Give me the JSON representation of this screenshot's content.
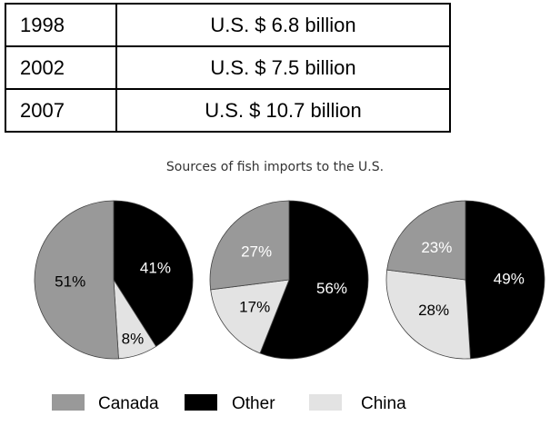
{
  "table": {
    "rows": [
      {
        "year": "1998",
        "value": "U.S.  $ 6.8 billion"
      },
      {
        "year": "2002",
        "value": "U.S.  $ 7.5 billion"
      },
      {
        "year": "2007",
        "value": "U.S.  $ 10.7 billion"
      }
    ]
  },
  "chart_data": {
    "type": "pie",
    "title": "Sources of fish imports to the U.S.",
    "legend": {
      "placement": "bottom",
      "entries": [
        {
          "name": "Canada",
          "color": "#999999"
        },
        {
          "name": "Other",
          "color": "#000000"
        },
        {
          "name": "China",
          "color": "#e3e3e3"
        }
      ]
    },
    "pies": [
      {
        "slices": [
          {
            "name": "Other",
            "value": 41,
            "label": "41%"
          },
          {
            "name": "China",
            "value": 8,
            "label": "8%"
          },
          {
            "name": "Canada",
            "value": 51,
            "label": "51%"
          }
        ]
      },
      {
        "slices": [
          {
            "name": "Other",
            "value": 56,
            "label": "56%"
          },
          {
            "name": "China",
            "value": 17,
            "label": "17%"
          },
          {
            "name": "Canada",
            "value": 27,
            "label": "27%"
          }
        ]
      },
      {
        "slices": [
          {
            "name": "Other",
            "value": 49,
            "label": "49%"
          },
          {
            "name": "China",
            "value": 28,
            "label": "28%"
          },
          {
            "name": "Canada",
            "value": 23,
            "label": "23%"
          }
        ]
      }
    ]
  }
}
